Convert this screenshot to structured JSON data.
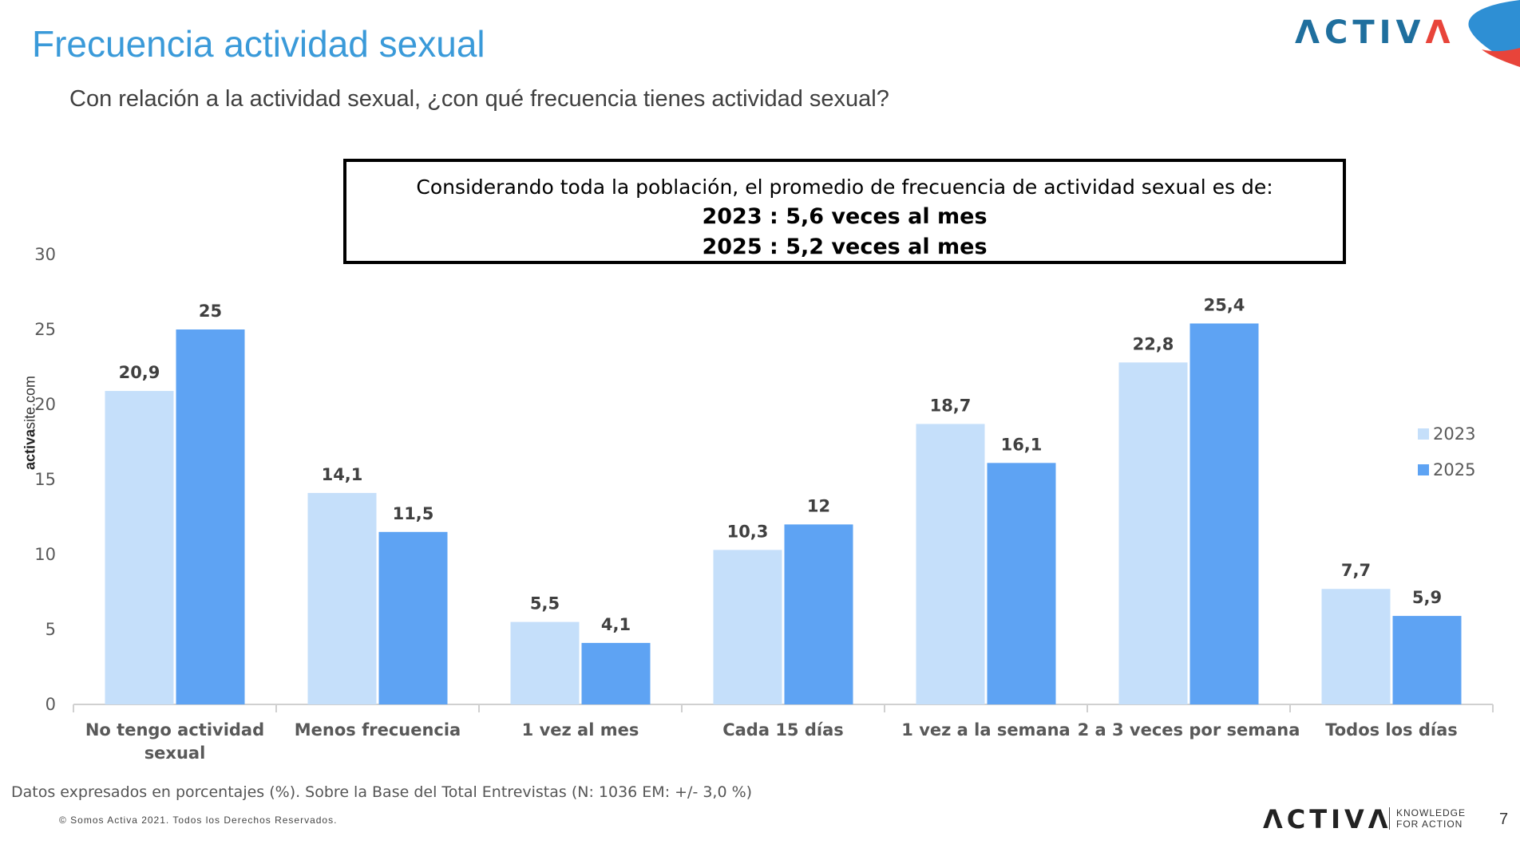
{
  "header": {
    "title": "Frecuencia actividad sexual",
    "subtitle": "Con relación a la actividad sexual, ¿con qué frecuencia tienes actividad sexual?",
    "logo": "ACTIVA"
  },
  "callout": {
    "line1": "Considerando toda la población, el promedio de frecuencia de actividad sexual es de:",
    "line2": "2023 : 5,6 veces al mes",
    "line3": "2025 : 5,2 veces al mes"
  },
  "side": {
    "bold": "activa",
    "rest": "site.com"
  },
  "chart_data": {
    "type": "bar",
    "categories": [
      [
        "No tengo actividad",
        "sexual"
      ],
      [
        "Menos frecuencia"
      ],
      [
        "1 vez al mes"
      ],
      [
        "Cada 15 días"
      ],
      [
        "1 vez a la semana"
      ],
      [
        "2 a 3 veces por semana"
      ],
      [
        "Todos los días"
      ]
    ],
    "series": [
      {
        "name": "2023",
        "color": "#c5dffa",
        "values": [
          20.9,
          14.1,
          5.5,
          10.3,
          18.7,
          22.8,
          7.7
        ],
        "labels": [
          "20,9",
          "14,1",
          "5,5",
          "10,3",
          "18,7",
          "22,8",
          "7,7"
        ]
      },
      {
        "name": "2025",
        "color": "#5ea3f3",
        "values": [
          25,
          11.5,
          4.1,
          12,
          16.1,
          25.4,
          5.9
        ],
        "labels": [
          "25",
          "11,5",
          "4,1",
          "12",
          "16,1",
          "25,4",
          "5,9"
        ]
      }
    ],
    "ylim": [
      0,
      30
    ],
    "yticks": [
      "0",
      "5",
      "10",
      "15",
      "20",
      "25",
      "30"
    ],
    "legend": "right",
    "grid": false
  },
  "footer": {
    "note": "Datos expresados en porcentajes (%). Sobre la Base del Total Entrevistas (N: 1036  EM: +/- 3,0 %)",
    "copyright": "© Somos Activa 2021. Todos los Derechos Reservados.",
    "logo": "ACTIVA",
    "tagline1": "KNOWLEDGE",
    "tagline2": "FOR ACTION",
    "page": "7"
  }
}
